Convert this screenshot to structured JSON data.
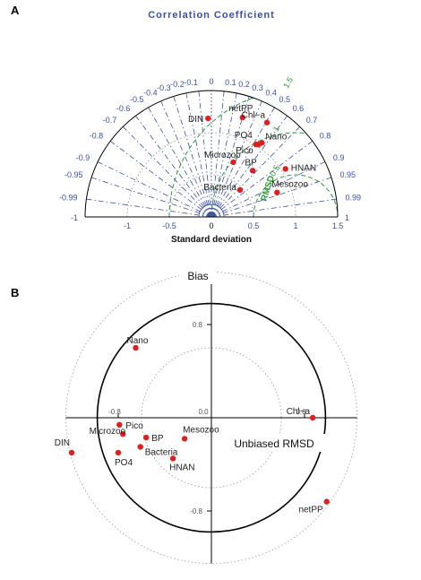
{
  "chart_data": [
    {
      "type": "scatter",
      "panel_label": "A",
      "plot": "taylor-diagram",
      "title": "Correlation Coefficient",
      "xlabel": "Standard deviation",
      "rmsd_label": "RMSD",
      "std_ticks": [
        "-1",
        "-0.5",
        "0",
        "0.5",
        "1",
        "1.5"
      ],
      "rmsd_ticks": [
        "0.5",
        "1",
        "1.5"
      ],
      "corr_ticks": [
        "-1",
        "-0.99",
        "-0.95",
        "-0.9",
        "-0.8",
        "-0.7",
        "-0.6",
        "-0.5",
        "-0.4",
        "-0.3",
        "-0.2",
        "-0.1",
        "0",
        "0.1",
        "0.2",
        "0.3",
        "0.4",
        "0.5",
        "0.6",
        "0.7",
        "0.8",
        "0.9",
        "0.95",
        "0.99",
        "1"
      ],
      "xlim": [
        -1.5,
        1.5
      ],
      "points": [
        {
          "label": "DIN",
          "x": -0.04,
          "y": 1.17
        },
        {
          "label": "netPP",
          "x": 0.37,
          "y": 1.18
        },
        {
          "label": "Chl−a",
          "x": 0.66,
          "y": 1.12
        },
        {
          "label": "Nano",
          "x": 0.6,
          "y": 0.88
        },
        {
          "label": "PO4",
          "x": 0.53,
          "y": 0.86
        },
        {
          "label": "Pico",
          "x": 0.56,
          "y": 0.86
        },
        {
          "label": "Microzoo",
          "x": 0.26,
          "y": 0.65
        },
        {
          "label": "BP",
          "x": 0.49,
          "y": 0.55
        },
        {
          "label": "HNAN",
          "x": 0.88,
          "y": 0.57
        },
        {
          "label": "Bacteria",
          "x": 0.34,
          "y": 0.32
        },
        {
          "label": "Mesozoo",
          "x": 0.78,
          "y": 0.29
        }
      ]
    },
    {
      "type": "scatter",
      "panel_label": "B",
      "plot": "target-diagram",
      "ylabel": "Bias",
      "xlabel": "Unbiased RMSD",
      "x_ticks": [
        "-0.8",
        "0.0",
        "0.8"
      ],
      "y_ticks": [
        "0.8",
        "-0.8"
      ],
      "xlim": [
        -1.25,
        1.25
      ],
      "ylim": [
        -1.25,
        1.25
      ],
      "points": [
        {
          "label": "Nano",
          "x": -0.65,
          "y": 0.6
        },
        {
          "label": "Chl−a",
          "x": 0.87,
          "y": 0.0
        },
        {
          "label": "DIN",
          "x": -1.2,
          "y": -0.3
        },
        {
          "label": "Pico",
          "x": -0.79,
          "y": -0.06
        },
        {
          "label": "Microzoo",
          "x": -0.76,
          "y": -0.14
        },
        {
          "label": "BP",
          "x": -0.56,
          "y": -0.17
        },
        {
          "label": "Bacteria",
          "x": -0.61,
          "y": -0.25
        },
        {
          "label": "PO4",
          "x": -0.8,
          "y": -0.3
        },
        {
          "label": "Mesozoo",
          "x": -0.23,
          "y": -0.18
        },
        {
          "label": "HNAN",
          "x": -0.33,
          "y": -0.35
        },
        {
          "label": "netPP",
          "x": 0.99,
          "y": -0.72
        }
      ]
    }
  ]
}
